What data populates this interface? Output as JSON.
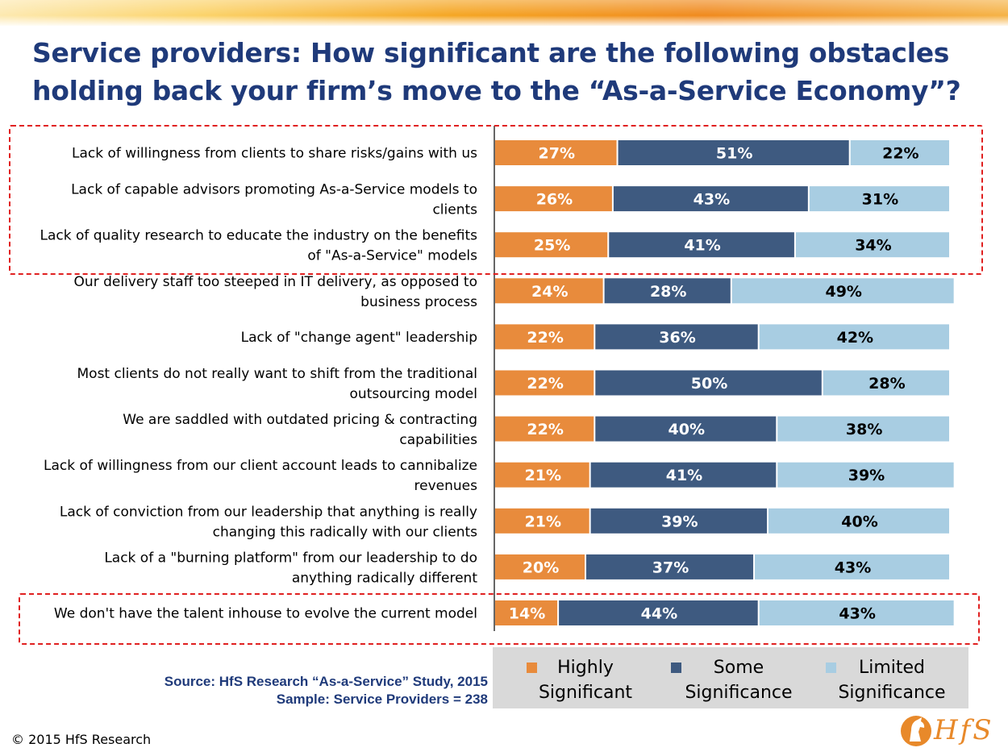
{
  "title": "Service providers: How significant are the following obstacles holding back your firm’s move to the “As-a-Service Economy”?",
  "chart_data": {
    "type": "bar",
    "orientation": "horizontal",
    "stacked": true,
    "percent_labels": true,
    "categories": [
      "Lack of willingness from clients to share risks/gains with us",
      "Lack of capable advisors promoting As-a-Service models to clients",
      "Lack of quality research to educate the industry on the benefits of \"As-a-Service\" models",
      "Our delivery staff too steeped in IT delivery, as opposed to business process",
      "Lack of \"change agent\" leadership",
      "Most clients do not really want to shift from the traditional outsourcing model",
      "We are saddled with outdated pricing & contracting capabilities",
      "Lack of willingness from our client account leads to cannibalize revenues",
      "Lack of conviction from our leadership that anything is really changing this radically with our clients",
      "Lack of a \"burning platform\" from our leadership to do anything radically different",
      "We don't have the talent inhouse to evolve the current model"
    ],
    "category_lines": [
      [
        "Lack of willingness from clients to share risks/gains with us"
      ],
      [
        "Lack of capable advisors promoting As-a-Service models to",
        "clients"
      ],
      [
        "Lack of quality research to educate the industry on the benefits",
        "of \"As-a-Service\" models"
      ],
      [
        "Our delivery staff too steeped in IT delivery, as opposed to",
        "business process"
      ],
      [
        "Lack of \"change agent\" leadership"
      ],
      [
        "Most clients do not really want to shift from the traditional",
        "outsourcing model"
      ],
      [
        "We are saddled with outdated pricing & contracting",
        "capabilities"
      ],
      [
        "Lack of willingness from our client account leads to cannibalize",
        "revenues"
      ],
      [
        "Lack of conviction from our leadership that anything is really",
        "changing this radically with our clients"
      ],
      [
        "Lack of a \"burning platform\" from our leadership to do",
        "anything radically different"
      ],
      [
        "We don't have the talent inhouse to evolve the current model"
      ]
    ],
    "series": [
      {
        "name": "Highly Significant",
        "color": "#e88b3c",
        "values": [
          27,
          26,
          25,
          24,
          22,
          22,
          22,
          21,
          21,
          20,
          14
        ]
      },
      {
        "name": "Some Significance",
        "color": "#3e5a80",
        "values": [
          51,
          43,
          41,
          28,
          36,
          50,
          40,
          41,
          39,
          37,
          44
        ]
      },
      {
        "name": "Limited Significance",
        "color": "#a8cde2",
        "values": [
          22,
          31,
          34,
          49,
          42,
          28,
          38,
          39,
          40,
          43,
          43
        ]
      }
    ],
    "label_colors": [
      "#ffffff",
      "#ffffff",
      "#000000"
    ],
    "legend_position": "bottom-right",
    "highlighted_rows": [
      0,
      1,
      2,
      10
    ]
  },
  "legend": [
    {
      "line1": "Highly",
      "line2": "Significant",
      "color": "#e88b3c"
    },
    {
      "line1": "Some",
      "line2": "Significance",
      "color": "#3e5a80"
    },
    {
      "line1": "Limited",
      "line2": "Significance",
      "color": "#a8cde2"
    }
  ],
  "source": {
    "line1": "Source: HfS Research “As-a-Service” Study, 2015",
    "line2": "Sample: Service Providers = 238"
  },
  "copyright": "© 2015 HfS Research",
  "logo": {
    "text": "HfS"
  }
}
